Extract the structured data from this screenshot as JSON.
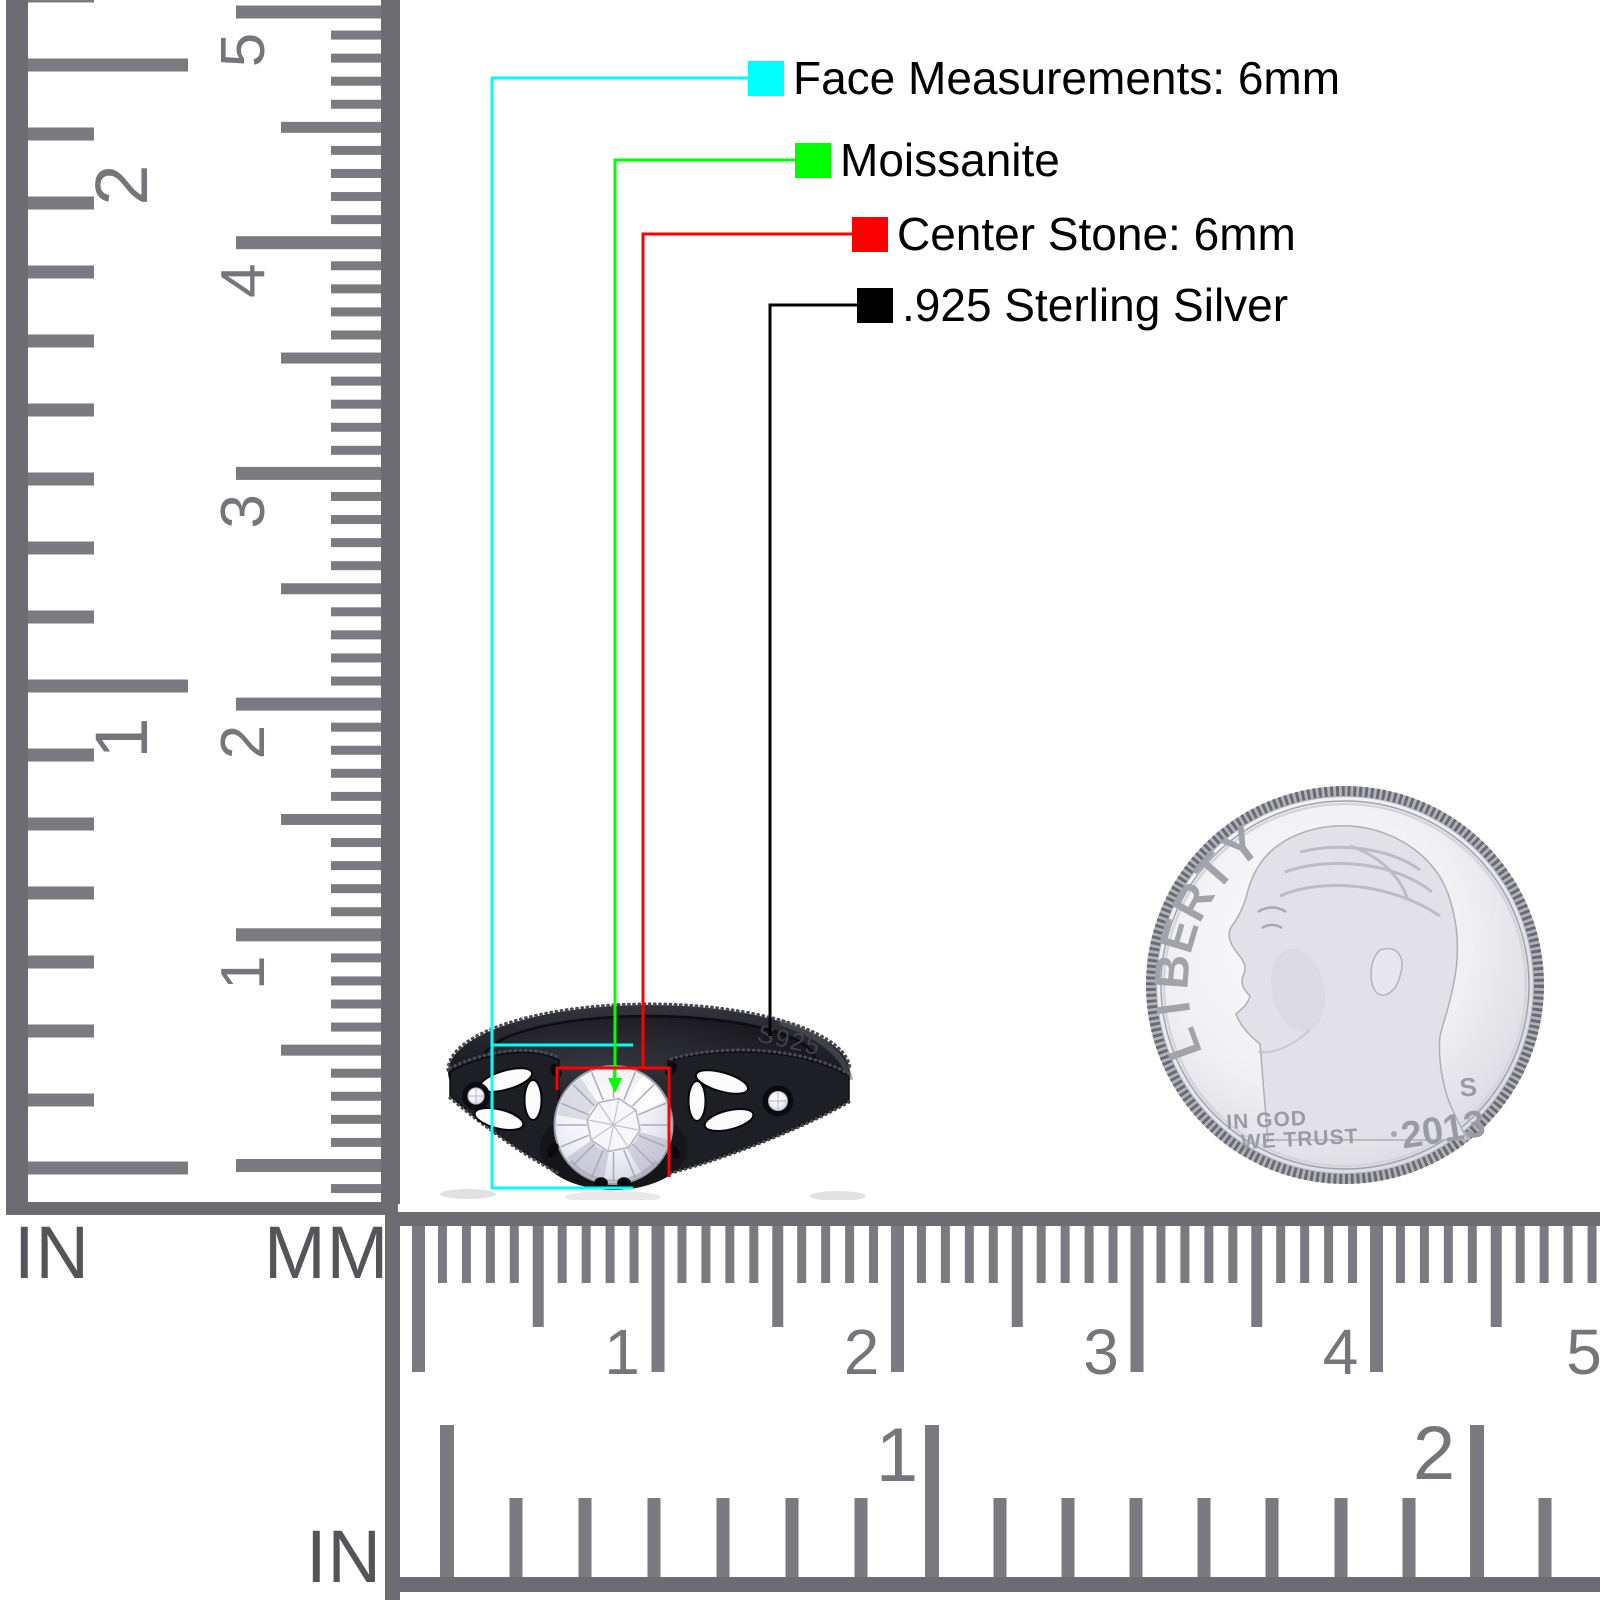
{
  "scene": "ring-measurement-product-photo",
  "annotations": {
    "items": [
      {
        "label": "Face Measurements: 6mm",
        "color": "#00ffff"
      },
      {
        "label": "Moissanite",
        "color": "#00ff00"
      },
      {
        "label": "Center Stone: 6mm",
        "color": "#ff0000"
      },
      {
        "label": ".925 Sterling Silver",
        "color": "#000000"
      }
    ]
  },
  "rulers": {
    "left": {
      "inch_unit": "IN",
      "mm_unit": "MM",
      "inch_labels": [
        "2",
        "1"
      ],
      "cm_labels": [
        "5",
        "4",
        "3",
        "2",
        "1"
      ]
    },
    "bottom": {
      "inch_unit": "IN",
      "cm_labels": [
        "1",
        "2",
        "3",
        "4",
        "5"
      ],
      "inch_labels": [
        "1",
        "2"
      ]
    },
    "tick_color": "#7a7a80",
    "edge_color": "#6c6c72",
    "number_color": "#75757b"
  },
  "ring": {
    "stamp": "S925"
  },
  "coin": {
    "legend": "LIBERTY",
    "motto_line1": "IN GOD",
    "motto_line2": "WE TRUST",
    "date": "2013",
    "mint_mark": "S"
  }
}
